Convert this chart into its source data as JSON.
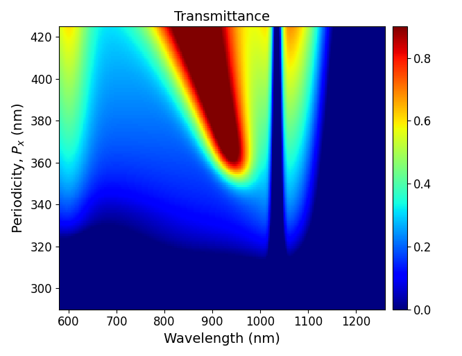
{
  "wavelength_min": 580,
  "wavelength_max": 1260,
  "wavelength_n": 300,
  "periodicity_min": 290,
  "periodicity_max": 425,
  "periodicity_n": 150,
  "colormap": "jet",
  "vmin": 0,
  "vmax": 0.9,
  "title": "Transmittance",
  "xlabel": "Wavelength (nm)",
  "ylabel": "Periodicity, $P_x$ (nm)",
  "xticks": [
    600,
    700,
    800,
    900,
    1000,
    1100,
    1200
  ],
  "yticks": [
    300,
    320,
    340,
    360,
    380,
    400,
    420
  ],
  "title_fontsize": 14,
  "label_fontsize": 14,
  "tick_fontsize": 12,
  "colorbar_ticks": [
    0,
    0.2,
    0.4,
    0.6,
    0.8
  ],
  "colorbar_fontsize": 12,
  "figsize": [
    6.66,
    5.14
  ],
  "dpi": 100
}
